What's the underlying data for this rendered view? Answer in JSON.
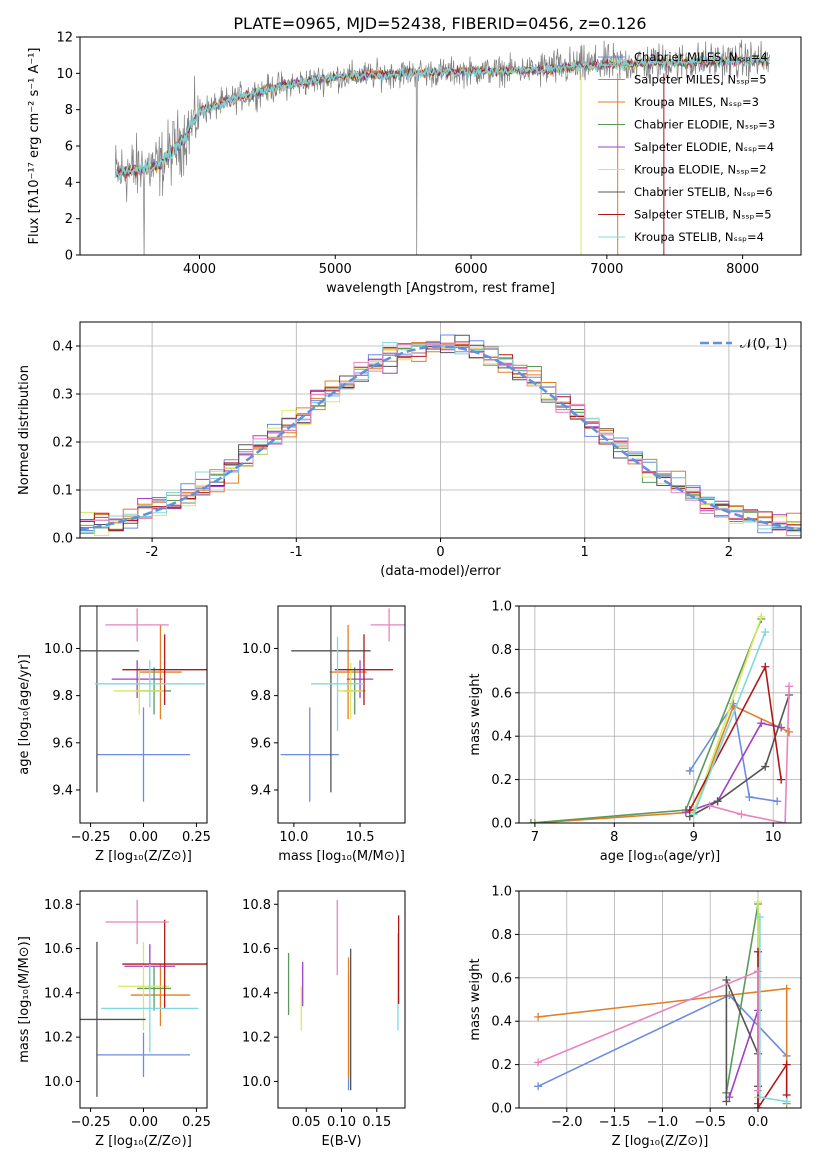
{
  "figure_title": "PLATE=0965, MJD=52438, FIBERID=0456, z=0.126",
  "colors": {
    "Chabrier MILES": "#6b8ce0",
    "Salpeter MILES": "#e07f28",
    "Kroupa MILES": "#e07f28",
    "Chabrier ELODIE": "#5c9a5c",
    "Salpeter ELODIE": "#a040c8",
    "Kroupa ELODIE": "#d8e860",
    "Chabrier STELIB": "#555555",
    "Salpeter STELIB": "#b01818",
    "Kroupa STELIB": "#80d8e0",
    "pink": "#e884c0",
    "gaussian": "#6090e0",
    "data": "#808080"
  },
  "chart_data": [
    {
      "id": "spectrum",
      "type": "line",
      "xlabel": "wavelength [Angstrom, rest frame]",
      "ylabel": "Flux [fλ10⁻¹⁷ erg cm⁻² s⁻¹ A⁻¹]",
      "xlim": [
        3120,
        8430
      ],
      "ylim": [
        0,
        12
      ],
      "xticks": [
        4000,
        5000,
        6000,
        7000,
        8000
      ],
      "yticks": [
        0,
        2,
        4,
        6,
        8,
        10,
        12
      ],
      "legend_position": "top-right",
      "continuum": [
        [
          3380,
          4.5
        ],
        [
          3700,
          4.9
        ],
        [
          3900,
          6.6
        ],
        [
          4000,
          7.9
        ],
        [
          4300,
          8.7
        ],
        [
          4600,
          9.3
        ],
        [
          5000,
          9.8
        ],
        [
          5500,
          10.0
        ],
        [
          6000,
          10.1
        ],
        [
          6500,
          10.2
        ],
        [
          7000,
          10.5
        ],
        [
          7500,
          10.6
        ],
        [
          8000,
          10.7
        ],
        [
          8200,
          10.7
        ]
      ],
      "series": [
        {
          "name": "Chabrier MILES, N_SSP=4"
        },
        {
          "name": "Salpeter MILES, N_SSP=5"
        },
        {
          "name": "Kroupa MILES, N_SSP=3"
        },
        {
          "name": "Chabrier ELODIE, N_SSP=3"
        },
        {
          "name": "Salpeter ELODIE, N_SSP=4"
        },
        {
          "name": "Kroupa ELODIE, N_SSP=2"
        },
        {
          "name": "Chabrier STELIB, N_SSP=6"
        },
        {
          "name": "Salpeter STELIB, N_SSP=5"
        },
        {
          "name": "Kroupa STELIB, N_SSP=4"
        }
      ]
    },
    {
      "id": "residuals",
      "type": "line",
      "xlabel": "(data-model)/error",
      "ylabel": "Normed distribution",
      "xlim": [
        -2.5,
        2.5
      ],
      "ylim": [
        0,
        0.45
      ],
      "xticks": [
        -2,
        -1,
        0,
        1,
        2
      ],
      "yticks": [
        0.0,
        0.1,
        0.2,
        0.3,
        0.4
      ],
      "grid": true,
      "legend_label": "𝒩(0, 1)",
      "legend_position": "top-right"
    },
    {
      "id": "age_vs_Z",
      "type": "scatter",
      "xlabel": "Z [log₁₀(Z/Z⊙)]",
      "ylabel": "age  [log₁₀(age/yr)]",
      "xlim": [
        -0.3,
        0.3
      ],
      "ylim": [
        9.26,
        10.18
      ],
      "xticks": [
        -0.25,
        0.0,
        0.25
      ],
      "yticks": [
        9.4,
        9.6,
        9.8,
        10.0
      ],
      "points": [
        {
          "x": 0.0,
          "y": 9.55,
          "xerr": 0.22,
          "yerr": 0.2,
          "c": "#6b8ce0"
        },
        {
          "x": 0.08,
          "y": 9.9,
          "xerr": 0.1,
          "yerr": 0.2,
          "c": "#e07f28"
        },
        {
          "x": 0.05,
          "y": 9.82,
          "xerr": 0.08,
          "yerr": 0.1,
          "c": "#5c9a5c"
        },
        {
          "x": -0.03,
          "y": 9.87,
          "xerr": 0.12,
          "yerr": 0.08,
          "c": "#a040c8"
        },
        {
          "x": -0.02,
          "y": 9.82,
          "xerr": 0.12,
          "yerr": 0.1,
          "c": "#d8e860"
        },
        {
          "x": -0.22,
          "y": 9.99,
          "xerr": 0.2,
          "yerr": 0.6,
          "c": "#555555"
        },
        {
          "x": 0.1,
          "y": 9.91,
          "xerr": 0.2,
          "yerr": 0.15,
          "c": "#b01818"
        },
        {
          "x": 0.03,
          "y": 9.85,
          "xerr": 0.26,
          "yerr": 0.1,
          "c": "#80d8e0"
        },
        {
          "x": -0.03,
          "y": 10.1,
          "xerr": 0.15,
          "yerr": 0.07,
          "c": "#e884c0"
        }
      ]
    },
    {
      "id": "age_vs_mass",
      "type": "scatter",
      "xlabel": "mass [log₁₀(M/M⊙)]",
      "xlim": [
        9.88,
        10.84
      ],
      "ylim": [
        9.26,
        10.18
      ],
      "xticks": [
        10.0,
        10.5
      ],
      "yticks": [
        9.4,
        9.6,
        9.8,
        10.0
      ],
      "points": [
        {
          "x": 10.12,
          "y": 9.55,
          "xerr": 0.22,
          "yerr": 0.2,
          "c": "#6b8ce0"
        },
        {
          "x": 10.41,
          "y": 9.9,
          "xerr": 0.14,
          "yerr": 0.2,
          "c": "#e07f28"
        },
        {
          "x": 10.46,
          "y": 9.82,
          "xerr": 0.08,
          "yerr": 0.1,
          "c": "#5c9a5c"
        },
        {
          "x": 10.5,
          "y": 9.87,
          "xerr": 0.1,
          "yerr": 0.08,
          "c": "#a040c8"
        },
        {
          "x": 10.43,
          "y": 9.82,
          "xerr": 0.1,
          "yerr": 0.12,
          "c": "#d8e860"
        },
        {
          "x": 10.28,
          "y": 9.99,
          "xerr": 0.3,
          "yerr": 0.6,
          "c": "#555555"
        },
        {
          "x": 10.53,
          "y": 9.91,
          "xerr": 0.22,
          "yerr": 0.15,
          "c": "#b01818"
        },
        {
          "x": 10.33,
          "y": 9.85,
          "xerr": 0.2,
          "yerr": 0.2,
          "c": "#80d8e0"
        },
        {
          "x": 10.72,
          "y": 10.1,
          "xerr": 0.14,
          "yerr": 0.07,
          "c": "#e884c0"
        }
      ]
    },
    {
      "id": "weight_vs_age",
      "type": "line",
      "xlabel": "age  [log₁₀(age/yr)]",
      "ylabel": "mass weight",
      "xlim": [
        6.8,
        10.35
      ],
      "ylim": [
        0,
        1
      ],
      "xticks": [
        7,
        8,
        9,
        10
      ],
      "yticks": [
        0.0,
        0.2,
        0.4,
        0.6,
        0.8,
        1.0
      ],
      "grid": true,
      "series": [
        {
          "c": "#6b8ce0",
          "pts": [
            [
              8.95,
              0.24
            ],
            [
              9.5,
              0.55
            ],
            [
              9.7,
              0.12
            ],
            [
              10.05,
              0.1
            ]
          ]
        },
        {
          "c": "#e07f28",
          "pts": [
            [
              7.0,
              0.0
            ],
            [
              9.0,
              0.05
            ],
            [
              9.5,
              0.54
            ],
            [
              10.2,
              0.42
            ]
          ]
        },
        {
          "c": "#5c9a5c",
          "pts": [
            [
              6.95,
              0.0
            ],
            [
              8.9,
              0.06
            ],
            [
              9.85,
              0.94
            ]
          ]
        },
        {
          "c": "#a040c8",
          "pts": [
            [
              8.9,
              0.05
            ],
            [
              9.3,
              0.1
            ],
            [
              9.85,
              0.46
            ],
            [
              10.1,
              0.44
            ]
          ]
        },
        {
          "c": "#d8e860",
          "pts": [
            [
              9.0,
              0.05
            ],
            [
              9.85,
              0.95
            ]
          ]
        },
        {
          "c": "#555555",
          "pts": [
            [
              8.95,
              0.03
            ],
            [
              9.3,
              0.1
            ],
            [
              9.9,
              0.26
            ],
            [
              10.2,
              0.59
            ]
          ]
        },
        {
          "c": "#b01818",
          "pts": [
            [
              8.95,
              0.06
            ],
            [
              9.9,
              0.72
            ],
            [
              10.1,
              0.2
            ]
          ]
        },
        {
          "c": "#80d8e0",
          "pts": [
            [
              9.0,
              0.04
            ],
            [
              9.9,
              0.88
            ]
          ]
        },
        {
          "c": "#e884c0",
          "pts": [
            [
              9.2,
              0.08
            ],
            [
              9.6,
              0.04
            ],
            [
              10.15,
              0.0
            ],
            [
              10.2,
              0.63
            ]
          ]
        }
      ]
    },
    {
      "id": "mass_vs_Z",
      "type": "scatter",
      "xlabel": "Z [log₁₀(Z/Z⊙)]",
      "ylabel": "mass [log₁₀(M/M⊙)]",
      "xlim": [
        -0.3,
        0.3
      ],
      "ylim": [
        9.88,
        10.86
      ],
      "xticks": [
        -0.25,
        0.0,
        0.25
      ],
      "yticks": [
        10.0,
        10.2,
        10.4,
        10.6,
        10.8
      ],
      "points": [
        {
          "x": 0.0,
          "y": 10.12,
          "xerr": 0.22,
          "yerr": 0.1,
          "c": "#6b8ce0"
        },
        {
          "x": 0.08,
          "y": 10.39,
          "xerr": 0.14,
          "yerr": 0.14,
          "c": "#e07f28"
        },
        {
          "x": 0.05,
          "y": 10.42,
          "xerr": 0.08,
          "yerr": 0.1,
          "c": "#5c9a5c"
        },
        {
          "x": 0.03,
          "y": 10.52,
          "xerr": 0.12,
          "yerr": 0.1,
          "c": "#a040c8"
        },
        {
          "x": 0.0,
          "y": 10.43,
          "xerr": 0.12,
          "yerr": 0.2,
          "c": "#d8e860"
        },
        {
          "x": -0.22,
          "y": 10.28,
          "xerr": 0.23,
          "yerr": 0.35,
          "c": "#555555"
        },
        {
          "x": 0.1,
          "y": 10.53,
          "xerr": 0.2,
          "yerr": 0.2,
          "c": "#b01818"
        },
        {
          "x": 0.03,
          "y": 10.33,
          "xerr": 0.23,
          "yerr": 0.2,
          "c": "#80d8e0"
        },
        {
          "x": -0.03,
          "y": 10.72,
          "xerr": 0.15,
          "yerr": 0.1,
          "c": "#e884c0"
        }
      ]
    },
    {
      "id": "mass_vs_ebv",
      "type": "scatter",
      "xlabel": "E(B-V)",
      "xlim": [
        0.01,
        0.19
      ],
      "ylim": [
        9.88,
        10.86
      ],
      "xticks": [
        0.05,
        0.1,
        0.15
      ],
      "yticks": [
        10.0,
        10.2,
        10.4,
        10.6,
        10.8
      ],
      "points": [
        {
          "x": 0.025,
          "y": 10.44,
          "yerr": 0.14,
          "c": "#5c9a5c"
        },
        {
          "x": 0.043,
          "y": 10.33,
          "yerr": 0.1,
          "c": "#d8e860"
        },
        {
          "x": 0.045,
          "y": 10.44,
          "yerr": 0.1,
          "c": "#a040c8"
        },
        {
          "x": 0.094,
          "y": 10.65,
          "yerr": 0.17,
          "c": "#e884c0"
        },
        {
          "x": 0.11,
          "y": 10.22,
          "yerr": 0.26,
          "c": "#6b8ce0"
        },
        {
          "x": 0.11,
          "y": 10.29,
          "yerr": 0.27,
          "c": "#e07f28"
        },
        {
          "x": 0.113,
          "y": 10.28,
          "yerr": 0.32,
          "c": "#555555"
        },
        {
          "x": 0.18,
          "y": 10.45,
          "yerr": 0.22,
          "c": "#80d8e0"
        },
        {
          "x": 0.181,
          "y": 10.55,
          "yerr": 0.2,
          "c": "#b01818"
        }
      ]
    },
    {
      "id": "weight_vs_Z",
      "type": "line",
      "xlabel": "Z [log₁₀(Z/Z⊙)]",
      "ylabel": "mass weight",
      "xlim": [
        -2.5,
        0.45
      ],
      "ylim": [
        0,
        1
      ],
      "xticks": [
        -2.0,
        -1.5,
        -1.0,
        -0.5,
        0.0
      ],
      "yticks": [
        0.0,
        0.2,
        0.4,
        0.6,
        0.8,
        1.0
      ],
      "grid": true,
      "series": [
        {
          "c": "#6b8ce0",
          "pts": [
            [
              -2.3,
              0.1
            ],
            [
              -0.3,
              0.52
            ],
            [
              0.3,
              0.24
            ]
          ]
        },
        {
          "c": "#e07f28",
          "pts": [
            [
              -2.3,
              0.42
            ],
            [
              0.3,
              0.55
            ],
            [
              0.3,
              0.02
            ]
          ]
        },
        {
          "c": "#5c9a5c",
          "pts": [
            [
              -0.33,
              0.07
            ],
            [
              0.0,
              0.94
            ],
            [
              0.0,
              0.05
            ]
          ]
        },
        {
          "c": "#a040c8",
          "pts": [
            [
              -0.3,
              0.05
            ],
            [
              0.0,
              0.45
            ],
            [
              0.0,
              0.02
            ]
          ]
        },
        {
          "c": "#d8e860",
          "pts": [
            [
              0.0,
              0.05
            ],
            [
              0.0,
              0.95
            ]
          ]
        },
        {
          "c": "#555555",
          "pts": [
            [
              -0.33,
              0.03
            ],
            [
              -0.33,
              0.59
            ],
            [
              0.0,
              0.25
            ],
            [
              0.0,
              0.1
            ],
            [
              0.0,
              0.0
            ]
          ]
        },
        {
          "c": "#b01818",
          "pts": [
            [
              0.0,
              0.72
            ],
            [
              0.0,
              0.0
            ],
            [
              0.3,
              0.2
            ],
            [
              0.3,
              0.06
            ]
          ]
        },
        {
          "c": "#80d8e0",
          "pts": [
            [
              0.02,
              0.88
            ],
            [
              0.02,
              0.05
            ],
            [
              0.3,
              0.03
            ]
          ]
        },
        {
          "c": "#e884c0",
          "pts": [
            [
              -2.3,
              0.21
            ],
            [
              0.0,
              0.63
            ],
            [
              0.0,
              0.08
            ]
          ]
        }
      ]
    }
  ]
}
